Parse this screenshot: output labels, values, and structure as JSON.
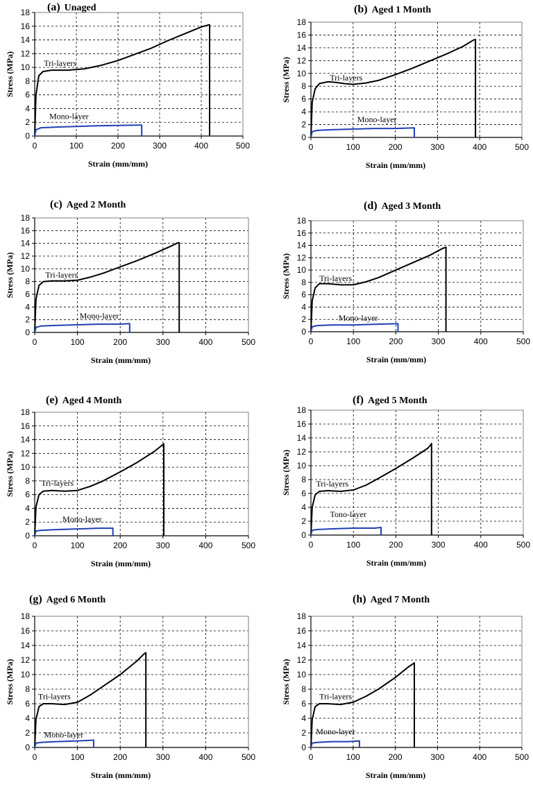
{
  "figure": {
    "panel_count": 8
  },
  "chart_data": [
    {
      "type": "line",
      "letter": "(a)",
      "title": "Unaged",
      "xlabel": "Strain (mm/mm)",
      "ylabel": "Stress (MPa)",
      "xlim": [
        0,
        500
      ],
      "ylim": [
        0,
        18
      ],
      "xticks": [
        0,
        100,
        200,
        300,
        400,
        500
      ],
      "yticks": [
        0,
        2,
        4,
        6,
        8,
        10,
        12,
        14,
        16,
        18
      ],
      "grid": true,
      "series": [
        {
          "name": "Tri-layers",
          "color": "#000000",
          "x": [
            0,
            3,
            10,
            20,
            40,
            80,
            120,
            160,
            200,
            240,
            280,
            320,
            360,
            400,
            418,
            420,
            420
          ],
          "y": [
            0,
            6,
            8.8,
            9.4,
            9.6,
            9.6,
            9.8,
            10.3,
            11.0,
            11.9,
            12.8,
            13.9,
            14.9,
            15.9,
            16.2,
            16.2,
            0
          ]
        },
        {
          "name": "Mono-layer",
          "color": "#1f3fb4",
          "x": [
            0,
            3,
            15,
            50,
            100,
            150,
            200,
            250,
            257,
            257
          ],
          "y": [
            0,
            0.9,
            1.2,
            1.3,
            1.4,
            1.5,
            1.55,
            1.6,
            1.6,
            0
          ]
        }
      ],
      "annotations": [
        {
          "text": "Tri-layers",
          "x": 22,
          "y": 10.2
        },
        {
          "text": "Mono-layer",
          "x": 35,
          "y": 2.5
        }
      ]
    },
    {
      "type": "line",
      "letter": "(b)",
      "title": "Aged 1 Month",
      "xlabel": "Strain (mm/mm)",
      "ylabel": "Stress (MPa)",
      "xlim": [
        0,
        500
      ],
      "ylim": [
        0,
        18
      ],
      "xticks": [
        0,
        100,
        200,
        300,
        400,
        500
      ],
      "yticks": [
        0,
        2,
        4,
        6,
        8,
        10,
        12,
        14,
        16,
        18
      ],
      "grid": true,
      "series": [
        {
          "name": "Tri-layers",
          "color": "#000000",
          "x": [
            0,
            3,
            10,
            20,
            40,
            60,
            80,
            100,
            130,
            160,
            200,
            240,
            280,
            320,
            360,
            385,
            390,
            390
          ],
          "y": [
            0,
            5.5,
            7.6,
            8.4,
            8.7,
            8.6,
            8.4,
            8.3,
            8.5,
            8.9,
            9.8,
            10.8,
            11.9,
            13.0,
            14.2,
            15.2,
            15.3,
            0
          ]
        },
        {
          "name": "Mono-layer",
          "color": "#1f3fb4",
          "x": [
            0,
            3,
            15,
            50,
            100,
            150,
            200,
            245,
            245
          ],
          "y": [
            0,
            0.9,
            1.1,
            1.2,
            1.3,
            1.4,
            1.4,
            1.5,
            0
          ]
        }
      ],
      "annotations": [
        {
          "text": "Tri-layers",
          "x": 45,
          "y": 8.9
        },
        {
          "text": "Mono-layer",
          "x": 110,
          "y": 2.4
        }
      ]
    },
    {
      "type": "line",
      "letter": "(c)",
      "title": "Aged 2 Month",
      "xlabel": "Strain (mm/mm)",
      "ylabel": "Stress (MPa)",
      "xlim": [
        0,
        500
      ],
      "ylim": [
        0,
        18
      ],
      "xticks": [
        0,
        100,
        200,
        300,
        400,
        500
      ],
      "yticks": [
        0,
        2,
        4,
        6,
        8,
        10,
        12,
        14,
        16,
        18
      ],
      "grid": true,
      "series": [
        {
          "name": "Tri-layers",
          "color": "#000000",
          "x": [
            0,
            3,
            10,
            20,
            40,
            70,
            100,
            130,
            160,
            200,
            240,
            280,
            320,
            335,
            338,
            338
          ],
          "y": [
            0,
            5.2,
            7.4,
            8.0,
            8.1,
            8.1,
            8.2,
            8.7,
            9.3,
            10.3,
            11.3,
            12.4,
            13.6,
            14.1,
            14.1,
            0
          ]
        },
        {
          "name": "Mono-layer",
          "color": "#1f3fb4",
          "x": [
            0,
            3,
            15,
            50,
            100,
            150,
            200,
            222,
            222
          ],
          "y": [
            0,
            0.8,
            1.0,
            1.1,
            1.2,
            1.3,
            1.3,
            1.4,
            0
          ]
        }
      ],
      "annotations": [
        {
          "text": "Tri-layers",
          "x": 25,
          "y": 8.6
        },
        {
          "text": "Mono-layer",
          "x": 105,
          "y": 2.2
        }
      ]
    },
    {
      "type": "line",
      "letter": "(d)",
      "title": "Aged 3 Month",
      "xlabel": "Strain (mm/mm)",
      "ylabel": "Stress (MPa)",
      "xlim": [
        0,
        500
      ],
      "ylim": [
        0,
        18
      ],
      "xticks": [
        0,
        100,
        200,
        300,
        400,
        500
      ],
      "yticks": [
        0,
        2,
        4,
        6,
        8,
        10,
        12,
        14,
        16,
        18
      ],
      "grid": true,
      "series": [
        {
          "name": "Tri-layers",
          "color": "#000000",
          "x": [
            0,
            3,
            10,
            20,
            40,
            70,
            100,
            130,
            160,
            200,
            240,
            280,
            310,
            318,
            318
          ],
          "y": [
            0,
            5.0,
            7.1,
            7.8,
            7.8,
            7.6,
            7.6,
            8.1,
            8.8,
            10.0,
            11.2,
            12.4,
            13.5,
            13.7,
            0
          ]
        },
        {
          "name": "Mono-layer",
          "color": "#1f3fb4",
          "x": [
            0,
            3,
            15,
            50,
            100,
            150,
            205,
            205
          ],
          "y": [
            0,
            0.8,
            1.0,
            1.1,
            1.1,
            1.2,
            1.3,
            0
          ]
        }
      ],
      "annotations": [
        {
          "text": "Tri-layers",
          "x": 20,
          "y": 8.2
        },
        {
          "text": "Mono-layer",
          "x": 65,
          "y": 1.8
        }
      ]
    },
    {
      "type": "line",
      "letter": "(e)",
      "title": "Aged 4 Month",
      "xlabel": "Strain (mm/mm)",
      "ylabel": "Stress (MPa)",
      "xlim": [
        0,
        500
      ],
      "ylim": [
        0,
        18
      ],
      "xticks": [
        0,
        100,
        200,
        300,
        400,
        500
      ],
      "yticks": [
        0,
        2,
        4,
        6,
        8,
        10,
        12,
        14,
        16,
        18
      ],
      "grid": true,
      "series": [
        {
          "name": "Tri-layers",
          "color": "#000000",
          "x": [
            0,
            3,
            10,
            20,
            40,
            70,
            100,
            130,
            160,
            200,
            240,
            280,
            300,
            302,
            302
          ],
          "y": [
            0,
            4.2,
            6.0,
            6.5,
            6.6,
            6.5,
            6.6,
            7.2,
            8.0,
            9.3,
            10.7,
            12.3,
            13.3,
            13.4,
            0
          ]
        },
        {
          "name": "Mono-layer",
          "color": "#1f3fb4",
          "x": [
            0,
            3,
            15,
            50,
            100,
            150,
            183,
            183
          ],
          "y": [
            0,
            0.7,
            0.8,
            0.9,
            1.0,
            1.1,
            1.1,
            0
          ]
        }
      ],
      "annotations": [
        {
          "text": "Tri-layers",
          "x": 15,
          "y": 7.3
        },
        {
          "text": "Mono-layer",
          "x": 65,
          "y": 2.0
        }
      ]
    },
    {
      "type": "line",
      "letter": "(f)",
      "title": "Aged 5 Month",
      "xlabel": "Strain (mm/mm)",
      "ylabel": "Stress (MPa)",
      "xlim": [
        0,
        500
      ],
      "ylim": [
        0,
        18
      ],
      "xticks": [
        0,
        100,
        200,
        300,
        400,
        500
      ],
      "yticks": [
        0,
        2,
        4,
        6,
        8,
        10,
        12,
        14,
        16,
        18
      ],
      "grid": true,
      "series": [
        {
          "name": "Tri-layers",
          "color": "#000000",
          "x": [
            0,
            3,
            10,
            20,
            40,
            70,
            100,
            130,
            160,
            200,
            240,
            275,
            282,
            284,
            284
          ],
          "y": [
            0,
            4.0,
            5.8,
            6.3,
            6.4,
            6.3,
            6.5,
            7.2,
            8.2,
            9.6,
            11.1,
            12.5,
            13.0,
            13.2,
            0
          ]
        },
        {
          "name": "Tono-layer",
          "color": "#1f3fb4",
          "x": [
            0,
            3,
            15,
            50,
            100,
            150,
            165,
            165
          ],
          "y": [
            0,
            0.7,
            0.8,
            0.9,
            1.0,
            1.0,
            1.1,
            0
          ]
        }
      ],
      "annotations": [
        {
          "text": "Tri-layers",
          "x": 12,
          "y": 7.0
        },
        {
          "text": "Tono-layer",
          "x": 45,
          "y": 2.6
        }
      ]
    },
    {
      "type": "line",
      "letter": "(g)",
      "title": "Aged 6 Month",
      "xlabel": "Strain (mm/mm)",
      "ylabel": "Stress (MPa)",
      "xlim": [
        0,
        500
      ],
      "ylim": [
        0,
        18
      ],
      "xticks": [
        0,
        100,
        200,
        300,
        400,
        500
      ],
      "yticks": [
        0,
        2,
        4,
        6,
        8,
        10,
        12,
        14,
        16,
        18
      ],
      "grid": true,
      "series": [
        {
          "name": "Tri-layers",
          "color": "#000000",
          "x": [
            0,
            3,
            10,
            20,
            40,
            70,
            100,
            130,
            160,
            200,
            240,
            255,
            260,
            260
          ],
          "y": [
            0,
            3.8,
            5.6,
            6.0,
            6.0,
            5.9,
            6.2,
            7.2,
            8.4,
            10.0,
            11.9,
            12.8,
            13.0,
            0
          ]
        },
        {
          "name": "Mono-layer",
          "color": "#1f3fb4",
          "x": [
            0,
            3,
            15,
            50,
            100,
            138,
            138
          ],
          "y": [
            0,
            0.6,
            0.7,
            0.8,
            0.9,
            1.0,
            0
          ]
        }
      ],
      "annotations": [
        {
          "text": "Tri-layers",
          "x": 8,
          "y": 6.6
        },
        {
          "text": "Mono-layer",
          "x": 22,
          "y": 1.4
        }
      ]
    },
    {
      "type": "line",
      "letter": "(h)",
      "title": "Aged 7 Month",
      "xlabel": "Strain (mm/mm)",
      "ylabel": "Stress (MPa)",
      "xlim": [
        0,
        500
      ],
      "ylim": [
        0,
        18
      ],
      "xticks": [
        0,
        100,
        200,
        300,
        400,
        500
      ],
      "yticks": [
        0,
        2,
        4,
        6,
        8,
        10,
        12,
        14,
        16,
        18
      ],
      "grid": true,
      "series": [
        {
          "name": "Tri-layers",
          "color": "#000000",
          "x": [
            0,
            3,
            10,
            20,
            40,
            70,
            100,
            130,
            160,
            200,
            230,
            245,
            245
          ],
          "y": [
            0,
            3.8,
            5.6,
            6.0,
            6.0,
            5.9,
            6.2,
            7.0,
            8.0,
            9.6,
            11.0,
            11.6,
            0
          ]
        },
        {
          "name": "Mono-layer",
          "color": "#1f3fb4",
          "x": [
            0,
            3,
            15,
            50,
            90,
            115,
            115
          ],
          "y": [
            0,
            0.6,
            0.7,
            0.8,
            0.8,
            0.9,
            0
          ]
        }
      ],
      "annotations": [
        {
          "text": "Tri-layers",
          "x": 20,
          "y": 6.6
        },
        {
          "text": "Mono-layer",
          "x": 12,
          "y": 1.8
        }
      ]
    }
  ]
}
